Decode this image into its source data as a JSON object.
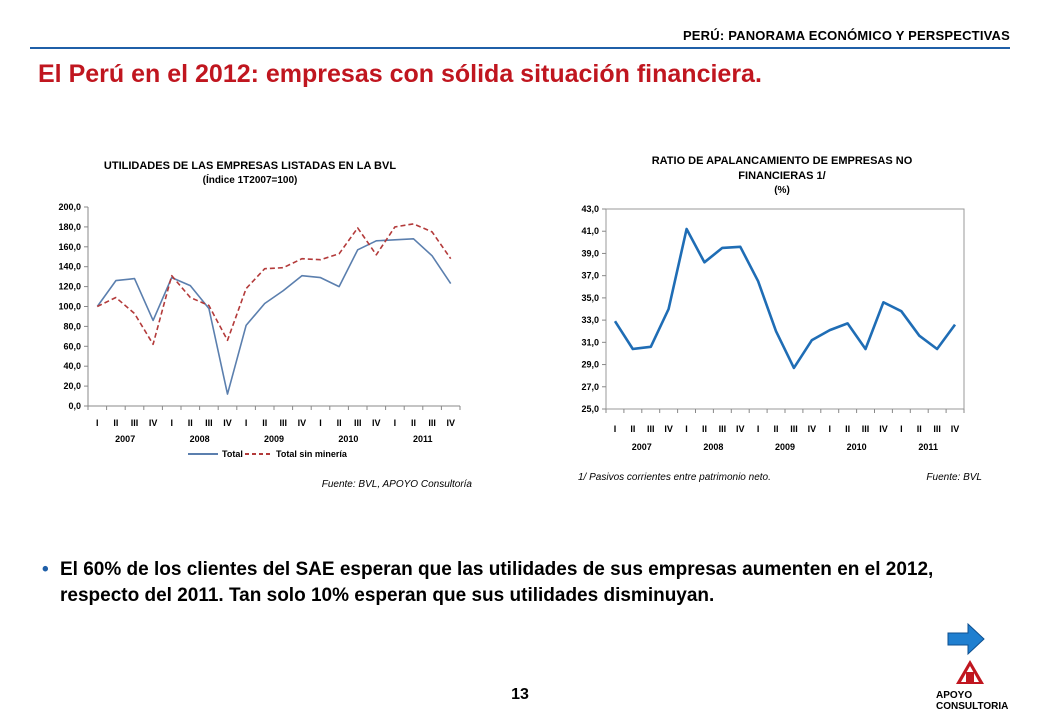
{
  "header": {
    "tag": "PERÚ: PANORAMA ECONÓMICO Y PERSPECTIVAS"
  },
  "title": "El Perú en el 2012: empresas con sólida situación financiera.",
  "charts": [
    {
      "title": "UTILIDADES DE LAS EMPRESAS LISTADAS EN LA BVL",
      "subtitle": "(Índice 1T2007=100)",
      "source": "Fuente: BVL, APOYO Consultoría",
      "legend": [
        "Total",
        "Total sin minería"
      ]
    },
    {
      "title_line1": "RATIO DE APALANCAMIENTO  DE EMPRESAS NO",
      "title_line2": "FINANCIERAS  1/",
      "subtitle": "(%)",
      "note": "1/ Pasivos corrientes entre patrimonio neto.",
      "source": "Fuente: BVL"
    }
  ],
  "chart_data": [
    {
      "type": "line",
      "title": "UTILIDADES DE LAS EMPRESAS LISTADAS EN LA BVL",
      "subtitle": "(Índice 1T2007=100)",
      "quarters": [
        "I",
        "II",
        "III",
        "IV",
        "I",
        "II",
        "III",
        "IV",
        "I",
        "II",
        "III",
        "IV",
        "I",
        "II",
        "III",
        "IV",
        "I",
        "II",
        "III",
        "IV"
      ],
      "years": [
        "2007",
        "2008",
        "2009",
        "2010",
        "2011"
      ],
      "ylim": [
        0,
        200
      ],
      "yticks": [
        "0,0",
        "20,0",
        "40,0",
        "60,0",
        "80,0",
        "100,0",
        "120,0",
        "140,0",
        "160,0",
        "180,0",
        "200,0"
      ],
      "legend_position": "bottom",
      "series": [
        {
          "name": "Total",
          "color": "#5b7fae",
          "dash": false,
          "values": [
            100,
            126,
            128,
            86,
            129,
            121,
            98,
            12,
            81,
            103,
            116,
            131,
            129,
            120,
            157,
            166,
            167,
            168,
            151,
            123
          ]
        },
        {
          "name": "Total sin minería",
          "color": "#b33a3a",
          "dash": true,
          "values": [
            100,
            109,
            93,
            62,
            131,
            109,
            101,
            66,
            118,
            138,
            139,
            148,
            147,
            153,
            179,
            152,
            180,
            183,
            175,
            148
          ]
        }
      ]
    },
    {
      "type": "line",
      "title": "RATIO DE APALANCAMIENTO  DE EMPRESAS NO FINANCIERAS  1/",
      "subtitle": "(%)",
      "quarters": [
        "I",
        "II",
        "III",
        "IV",
        "I",
        "II",
        "III",
        "IV",
        "I",
        "II",
        "III",
        "IV",
        "I",
        "II",
        "III",
        "IV",
        "I",
        "II",
        "III",
        "IV"
      ],
      "years": [
        "2007",
        "2008",
        "2009",
        "2010",
        "2011"
      ],
      "ylim": [
        25,
        43
      ],
      "yticks": [
        "25,0",
        "27,0",
        "29,0",
        "31,0",
        "33,0",
        "35,0",
        "37,0",
        "39,0",
        "41,0",
        "43,0"
      ],
      "series": [
        {
          "color": "#1f6db5",
          "values": [
            32.9,
            30.4,
            30.6,
            34.0,
            41.2,
            38.2,
            39.5,
            39.6,
            36.5,
            32.0,
            28.7,
            31.2,
            32.1,
            32.7,
            30.4,
            34.6,
            33.8,
            31.6,
            30.4,
            32.6
          ]
        }
      ]
    }
  ],
  "bullet": "El 60% de los clientes del SAE esperan que las utilidades de sus empresas aumenten en el 2012, respecto del 2011. Tan solo 10% esperan que sus utilidades disminuyan.",
  "page_number": "13",
  "logo": {
    "line1": "APOYO",
    "line2": "CONSULTORIA"
  }
}
